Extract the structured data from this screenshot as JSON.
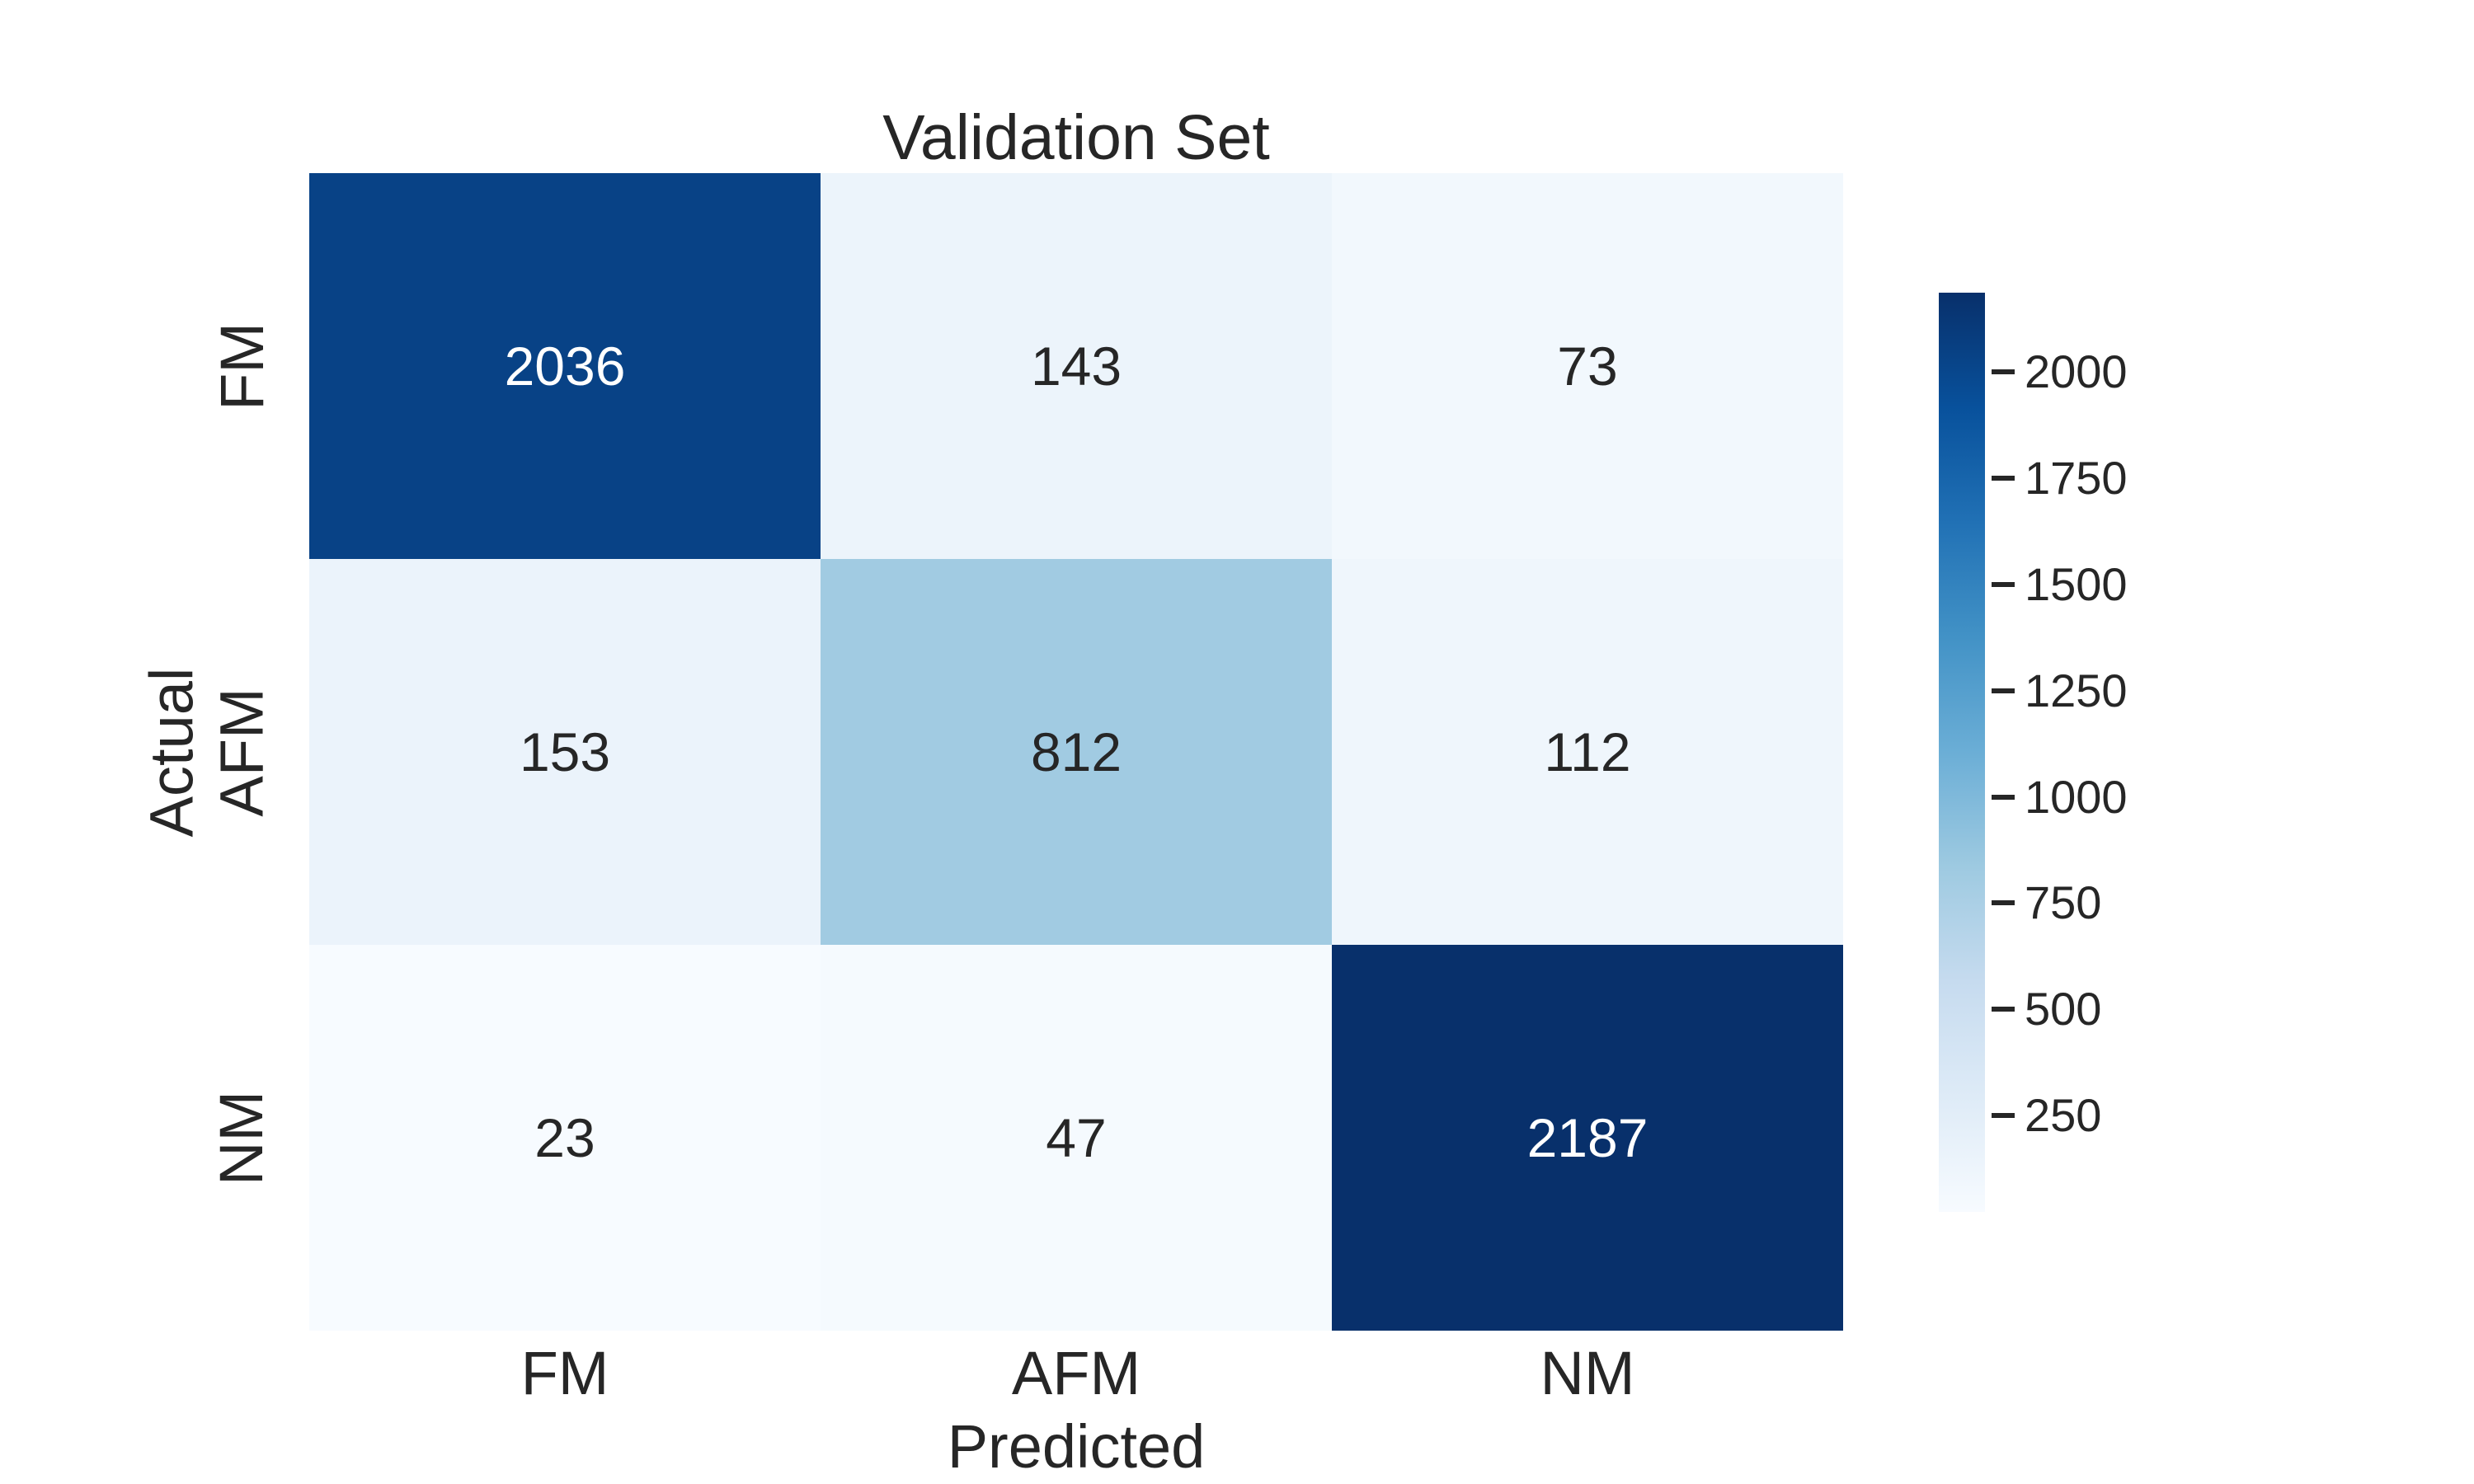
{
  "title": "Validation Set",
  "axes": {
    "x_label": "Predicted",
    "y_label": "Actual",
    "x_ticks": [
      "FM",
      "AFM",
      "NM"
    ],
    "y_ticks": [
      "FM",
      "AFM",
      "NM"
    ]
  },
  "chart_data": {
    "type": "heatmap",
    "title": "Validation Set",
    "xlabel": "Predicted",
    "ylabel": "Actual",
    "x_categories": [
      "FM",
      "AFM",
      "NM"
    ],
    "y_categories": [
      "FM",
      "AFM",
      "NM"
    ],
    "values": [
      [
        2036,
        143,
        73
      ],
      [
        153,
        812,
        112
      ],
      [
        23,
        47,
        2187
      ]
    ],
    "vmin": 23,
    "vmax": 2187,
    "colormap": "Blues",
    "legend_position": "right-colorbar",
    "grid": false,
    "colorbar_ticks": [
      250,
      500,
      750,
      1000,
      1250,
      1500,
      1750,
      2000
    ],
    "cell_colors": [
      [
        "#084286",
        "#ecf4fb",
        "#f2f8fd"
      ],
      [
        "#ebf3fb",
        "#a1cbe2",
        "#eff6fc"
      ],
      [
        "#f7fbff",
        "#f5fafe",
        "#08306b"
      ]
    ],
    "cell_text_colors": [
      [
        "#ffffff",
        "#262626",
        "#262626"
      ],
      [
        "#262626",
        "#262626",
        "#262626"
      ],
      [
        "#262626",
        "#262626",
        "#ffffff"
      ]
    ],
    "colorbar_gradient_top_to_bottom": [
      "#08306b",
      "#08519c",
      "#2171b5",
      "#4292c6",
      "#6baed6",
      "#9ecae1",
      "#c6dbef",
      "#deebf7",
      "#f7fbff"
    ]
  },
  "colors": {
    "text": "#262626",
    "background": "#ffffff",
    "annotation_light": "#ffffff"
  }
}
